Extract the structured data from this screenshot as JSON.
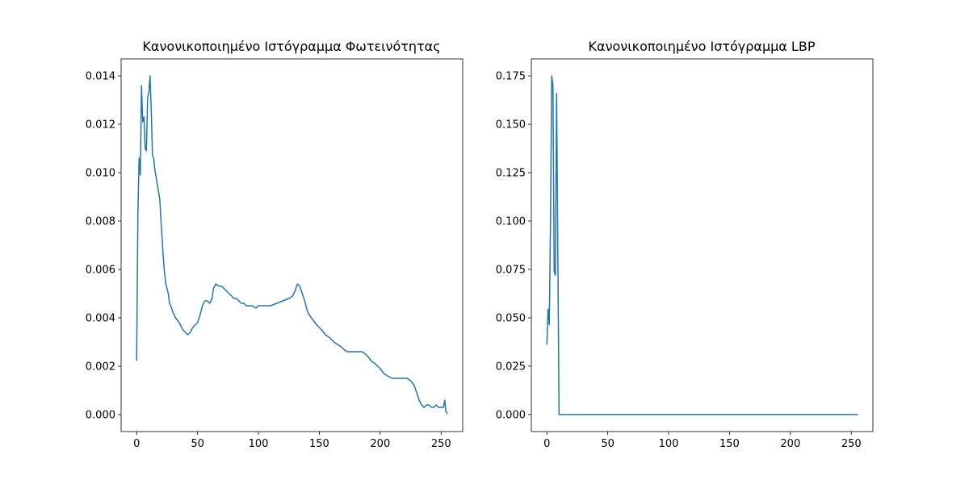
{
  "colors": {
    "line": "#1f77b4",
    "axis": "#000000",
    "background": "#ffffff"
  },
  "chart_data": [
    {
      "type": "line",
      "title": "Κανονικοποιημένο Ιστόγραμμα Φωτεινότητας",
      "xlabel": "",
      "ylabel": "",
      "xlim": [
        -12.75,
        267.75
      ],
      "ylim": [
        -0.0007,
        0.0147
      ],
      "xticks": [
        0,
        50,
        100,
        150,
        200,
        250
      ],
      "xtick_labels": [
        "0",
        "50",
        "100",
        "150",
        "200",
        "250"
      ],
      "yticks": [
        0.0,
        0.002,
        0.004,
        0.006,
        0.008,
        0.01,
        0.012,
        0.014
      ],
      "ytick_labels": [
        "0.000",
        "0.002",
        "0.004",
        "0.006",
        "0.008",
        "0.010",
        "0.012",
        "0.014"
      ],
      "grid": false,
      "series": [
        {
          "x": [
            0,
            1,
            2,
            3,
            4,
            5,
            6,
            7,
            8,
            9,
            10,
            11,
            12,
            13,
            14,
            15,
            17,
            19,
            20,
            21,
            22,
            23,
            24,
            25,
            26,
            27,
            28,
            30,
            32,
            35,
            38,
            40,
            42,
            44,
            46,
            48,
            50,
            52,
            54,
            56,
            58,
            60,
            62,
            63,
            65,
            68,
            70,
            72,
            74,
            76,
            78,
            80,
            82,
            84,
            86,
            88,
            90,
            92,
            95,
            98,
            100,
            103,
            106,
            110,
            115,
            120,
            125,
            128,
            130,
            132,
            134,
            136,
            138,
            140,
            142,
            145,
            148,
            150,
            152,
            155,
            158,
            160,
            162,
            165,
            168,
            170,
            173,
            176,
            180,
            183,
            185,
            188,
            190,
            193,
            196,
            200,
            203,
            206,
            210,
            215,
            218,
            220,
            222,
            225,
            228,
            230,
            232,
            234,
            236,
            238,
            240,
            242,
            244,
            246,
            248,
            250,
            252,
            253,
            254,
            255
          ],
          "y": [
            0.00225,
            0.0082,
            0.0106,
            0.0099,
            0.0136,
            0.0121,
            0.0123,
            0.011,
            0.0109,
            0.0131,
            0.0133,
            0.014,
            0.0126,
            0.0107,
            0.0106,
            0.0101,
            0.0095,
            0.0089,
            0.008,
            0.0072,
            0.0064,
            0.0058,
            0.0054,
            0.0052,
            0.005,
            0.0046,
            0.0045,
            0.0042,
            0.004,
            0.0038,
            0.0035,
            0.0034,
            0.0033,
            0.0034,
            0.0036,
            0.0037,
            0.0038,
            0.0041,
            0.0045,
            0.0047,
            0.0047,
            0.0046,
            0.0048,
            0.0052,
            0.0054,
            0.0053,
            0.0053,
            0.0052,
            0.0051,
            0.005,
            0.0049,
            0.0048,
            0.0048,
            0.0047,
            0.0046,
            0.0046,
            0.0045,
            0.0045,
            0.0045,
            0.0044,
            0.0045,
            0.0045,
            0.0045,
            0.0045,
            0.0046,
            0.0047,
            0.0048,
            0.0049,
            0.0051,
            0.0054,
            0.0053,
            0.005,
            0.0047,
            0.0043,
            0.0041,
            0.0039,
            0.0037,
            0.0036,
            0.0035,
            0.0033,
            0.0032,
            0.0031,
            0.003,
            0.0029,
            0.0028,
            0.0027,
            0.0026,
            0.0026,
            0.0026,
            0.0026,
            0.0026,
            0.0025,
            0.0024,
            0.0022,
            0.0021,
            0.0019,
            0.0017,
            0.0016,
            0.0015,
            0.0015,
            0.0015,
            0.0015,
            0.0015,
            0.0014,
            0.0012,
            0.0009,
            0.0006,
            0.0004,
            0.0003,
            0.0004,
            0.0004,
            0.0003,
            0.0003,
            0.0004,
            0.0003,
            0.0003,
            0.0003,
            0.0006,
            0.00012,
            5e-05
          ]
        }
      ]
    },
    {
      "type": "line",
      "title": "Κανονικοποιημένο Ιστόγραμμα LBP",
      "xlabel": "",
      "ylabel": "",
      "xlim": [
        -12.75,
        267.75
      ],
      "ylim": [
        -0.0088,
        0.1838
      ],
      "xticks": [
        0,
        50,
        100,
        150,
        200,
        250
      ],
      "xtick_labels": [
        "0",
        "50",
        "100",
        "150",
        "200",
        "250"
      ],
      "yticks": [
        0.0,
        0.025,
        0.05,
        0.075,
        0.1,
        0.125,
        0.15,
        0.175
      ],
      "ytick_labels": [
        "0.000",
        "0.025",
        "0.050",
        "0.075",
        "0.100",
        "0.125",
        "0.150",
        "0.175"
      ],
      "grid": false,
      "series": [
        {
          "x": [
            0,
            1,
            2,
            3,
            4,
            5,
            6,
            7,
            8,
            9,
            10,
            255
          ],
          "y": [
            0.0365,
            0.0545,
            0.0465,
            0.101,
            0.175,
            0.17,
            0.074,
            0.072,
            0.166,
            0.085,
            0.0,
            0.0
          ]
        }
      ]
    }
  ]
}
